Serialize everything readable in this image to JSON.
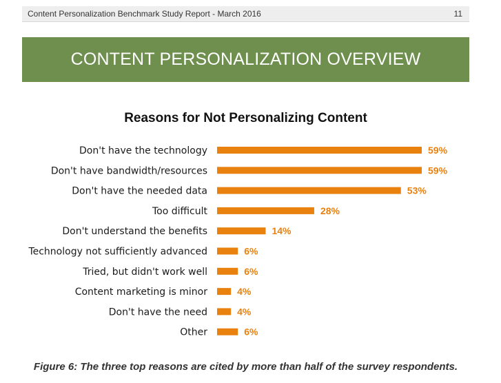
{
  "header": {
    "report_title": "Content Personalization Benchmark Study Report  - March 2016",
    "page_number": "11"
  },
  "banner": {
    "title": "CONTENT PERSONALIZATION OVERVIEW"
  },
  "colors": {
    "banner": "#6f8f4e",
    "bar": "#e8810e",
    "value_label": "#e8810e"
  },
  "chart_data": {
    "type": "bar",
    "orientation": "horizontal",
    "title": "Reasons for Not Personalizing Content",
    "xlabel": "",
    "ylabel": "",
    "grid": false,
    "xlim": [
      0,
      59
    ],
    "categories": [
      "Don't have the technology",
      "Don't have bandwidth/resources",
      "Don't have the needed data",
      "Too difficult",
      "Don't understand the benefits",
      "Technology not sufficiently advanced",
      "Tried, but didn't work well",
      "Content marketing is minor",
      "Don't have the need",
      "Other"
    ],
    "values": [
      59,
      59,
      53,
      28,
      14,
      6,
      6,
      4,
      4,
      6
    ],
    "value_labels": [
      "59%",
      "59%",
      "53%",
      "28%",
      "14%",
      "6%",
      "6%",
      "4%",
      "4%",
      "6%"
    ]
  },
  "caption": "Figure 6: The three top reasons are cited by more than half of the survey respondents."
}
